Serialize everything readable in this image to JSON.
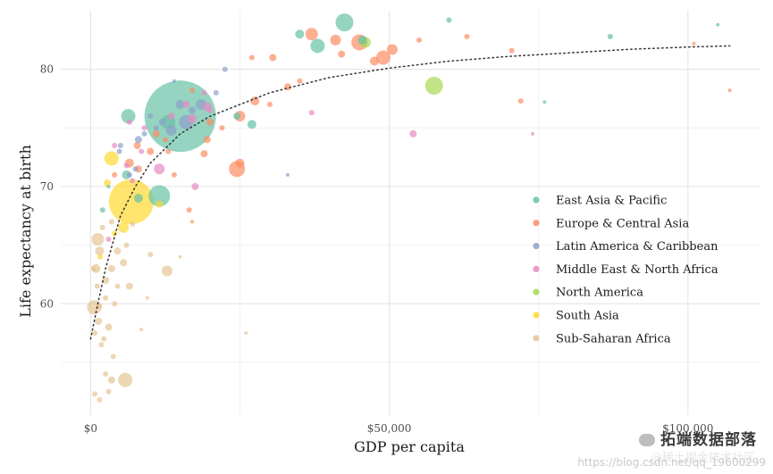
{
  "chart_data": {
    "type": "scatter",
    "title": "",
    "xlabel": "GDP per capita",
    "ylabel": "Life expectancy at birth",
    "xlim": [
      -5000,
      112000
    ],
    "ylim": [
      50.5,
      85
    ],
    "x_ticks": [
      0,
      50000,
      100000
    ],
    "x_tick_labels": [
      "$0",
      "$50,000",
      "$100,000"
    ],
    "y_ticks": [
      60,
      70,
      80
    ],
    "y_tick_labels": [
      "60",
      "70",
      "80"
    ],
    "grid": true,
    "legend_position": "right",
    "trend": {
      "style": "dotted",
      "points": [
        [
          0,
          57
        ],
        [
          1000,
          59.5
        ],
        [
          2500,
          63
        ],
        [
          5000,
          67.5
        ],
        [
          7500,
          70
        ],
        [
          10000,
          72
        ],
        [
          15000,
          74.5
        ],
        [
          20000,
          76
        ],
        [
          30000,
          78
        ],
        [
          40000,
          79.3
        ],
        [
          50000,
          80.1
        ],
        [
          60000,
          80.7
        ],
        [
          70000,
          81.1
        ],
        [
          80000,
          81.4
        ],
        [
          90000,
          81.7
        ],
        [
          100000,
          81.9
        ],
        [
          107000,
          82
        ]
      ]
    },
    "series": [
      {
        "name": "East Asia & Pacific",
        "color": "#66c2a5",
        "points": [
          [
            15000,
            76,
            40
          ],
          [
            42500,
            84,
            10
          ],
          [
            38000,
            82,
            8
          ],
          [
            35000,
            83,
            5
          ],
          [
            6300,
            76,
            8
          ],
          [
            8000,
            69,
            5
          ],
          [
            11500,
            69.2,
            12
          ],
          [
            6000,
            71,
            5
          ],
          [
            60000,
            84.2,
            3
          ],
          [
            87000,
            82.8,
            3
          ],
          [
            105000,
            83.8,
            2
          ],
          [
            27000,
            75.3,
            5
          ],
          [
            24500,
            76,
            4
          ],
          [
            76000,
            77.2,
            2
          ],
          [
            3000,
            70,
            2
          ],
          [
            45500,
            82.5,
            5
          ],
          [
            2000,
            68,
            3
          ],
          [
            13000,
            75.5,
            8
          ]
        ]
      },
      {
        "name": "Europe & Central Asia",
        "color": "#fc8d62",
        "points": [
          [
            37000,
            83,
            7
          ],
          [
            41000,
            82.5,
            6
          ],
          [
            45000,
            82.3,
            9
          ],
          [
            49000,
            81,
            8
          ],
          [
            50500,
            81.7,
            6
          ],
          [
            30500,
            81,
            4
          ],
          [
            27000,
            81,
            3
          ],
          [
            33000,
            78.5,
            4
          ],
          [
            27500,
            77.3,
            5
          ],
          [
            25000,
            76,
            6
          ],
          [
            25000,
            72,
            5
          ],
          [
            24500,
            71.5,
            9
          ],
          [
            20000,
            75.5,
            4
          ],
          [
            10000,
            73,
            4
          ],
          [
            17000,
            78.2,
            3
          ],
          [
            11000,
            74.5,
            4
          ],
          [
            19500,
            74,
            4
          ],
          [
            19000,
            72.8,
            4
          ],
          [
            8000,
            71.5,
            4
          ],
          [
            4000,
            71,
            3
          ],
          [
            6500,
            72,
            5
          ],
          [
            7800,
            73.5,
            4
          ],
          [
            70500,
            81.6,
            3
          ],
          [
            72000,
            77.3,
            3
          ],
          [
            63000,
            82.8,
            3
          ],
          [
            55000,
            82.5,
            3
          ],
          [
            42000,
            81.3,
            4
          ],
          [
            35000,
            79,
            3
          ],
          [
            101000,
            82.2,
            2
          ],
          [
            107000,
            78.2,
            2
          ],
          [
            16500,
            68,
            3
          ],
          [
            17000,
            67,
            2
          ],
          [
            13000,
            73,
            3
          ],
          [
            12500,
            74,
            3
          ],
          [
            22000,
            75,
            3
          ],
          [
            14000,
            71,
            3
          ],
          [
            30000,
            77,
            3
          ],
          [
            47500,
            80.7,
            5
          ]
        ]
      },
      {
        "name": "Latin America & Caribbean",
        "color": "#8da0cb",
        "points": [
          [
            16000,
            75.5,
            8
          ],
          [
            13500,
            74.8,
            6
          ],
          [
            15000,
            77,
            5
          ],
          [
            8000,
            74,
            4
          ],
          [
            22500,
            80,
            3
          ],
          [
            21000,
            78,
            3
          ],
          [
            12000,
            75.5,
            4
          ],
          [
            5000,
            73.5,
            3
          ],
          [
            9000,
            74.5,
            3
          ],
          [
            17000,
            76.5,
            4
          ],
          [
            7500,
            71.5,
            3
          ],
          [
            10000,
            76,
            3
          ],
          [
            18500,
            77,
            6
          ],
          [
            4800,
            73,
            3
          ],
          [
            6500,
            71,
            3
          ],
          [
            11000,
            75,
            3
          ],
          [
            33000,
            71,
            2
          ],
          [
            14000,
            79,
            2
          ]
        ]
      },
      {
        "name": "Middle East & North Africa",
        "color": "#e78ac3",
        "points": [
          [
            17000,
            75.8,
            5
          ],
          [
            16000,
            77,
            4
          ],
          [
            19500,
            76.8,
            5
          ],
          [
            13500,
            76,
            4
          ],
          [
            11500,
            71.5,
            6
          ],
          [
            17500,
            70,
            4
          ],
          [
            6000,
            71.8,
            3
          ],
          [
            6500,
            75.5,
            3
          ],
          [
            8500,
            73,
            3
          ],
          [
            4000,
            73.5,
            3
          ],
          [
            54000,
            74.5,
            4
          ],
          [
            74000,
            74.5,
            2
          ],
          [
            37000,
            76.3,
            3
          ],
          [
            20000,
            76.5,
            3
          ],
          [
            9000,
            75,
            3
          ],
          [
            3000,
            65.5,
            3
          ],
          [
            7000,
            70.5,
            3
          ],
          [
            19000,
            78,
            3
          ]
        ]
      },
      {
        "name": "North America",
        "color": "#a6d854",
        "points": [
          [
            57500,
            78.6,
            10
          ],
          [
            46000,
            82.3,
            6
          ]
        ]
      },
      {
        "name": "South Asia",
        "color": "#ffd92f",
        "points": [
          [
            6800,
            68.7,
            25
          ],
          [
            3500,
            72.4,
            8
          ],
          [
            5500,
            66.5,
            6
          ],
          [
            2800,
            70.3,
            4
          ],
          [
            4000,
            66,
            3
          ],
          [
            11500,
            68.5,
            4
          ],
          [
            1600,
            64,
            3
          ]
        ]
      },
      {
        "name": "Sub-Saharan Africa",
        "color": "#e5c494",
        "points": [
          [
            1200,
            65.5,
            7
          ],
          [
            1500,
            64.5,
            5
          ],
          [
            900,
            63,
            5
          ],
          [
            600,
            59.7,
            8
          ],
          [
            1300,
            58.5,
            4
          ],
          [
            2500,
            62,
            4
          ],
          [
            3500,
            63,
            4
          ],
          [
            4500,
            64.5,
            4
          ],
          [
            3000,
            58,
            4
          ],
          [
            1800,
            56.5,
            3
          ],
          [
            700,
            57.5,
            3
          ],
          [
            5500,
            63.5,
            4
          ],
          [
            6500,
            61.5,
            4
          ],
          [
            4000,
            60,
            3
          ],
          [
            2500,
            60.5,
            3
          ],
          [
            12800,
            62.8,
            6
          ],
          [
            5800,
            53.5,
            8
          ],
          [
            3500,
            53.5,
            4
          ],
          [
            700,
            52.3,
            3
          ],
          [
            1500,
            51.8,
            3
          ],
          [
            2500,
            54,
            3
          ],
          [
            3000,
            52.5,
            3
          ],
          [
            8500,
            57.8,
            2
          ],
          [
            17000,
            67,
            2
          ],
          [
            26000,
            57.5,
            2
          ],
          [
            2000,
            66.5,
            3
          ],
          [
            3500,
            67,
            3
          ],
          [
            7000,
            66.8,
            3
          ],
          [
            15000,
            64,
            2
          ],
          [
            10000,
            64.2,
            3
          ],
          [
            1100,
            61.5,
            3
          ],
          [
            500,
            63,
            3
          ],
          [
            2200,
            57,
            3
          ],
          [
            3800,
            55.5,
            3
          ],
          [
            1500,
            59.8,
            3
          ],
          [
            6000,
            65,
            3
          ],
          [
            4500,
            61.5,
            3
          ],
          [
            9500,
            60.5,
            2
          ]
        ]
      }
    ]
  },
  "watermark": {
    "line1": "拓端数据部落",
    "line2": "https://blog.csdn.net/qq_19600299",
    "line3": "@稀土掘金技术社区"
  }
}
